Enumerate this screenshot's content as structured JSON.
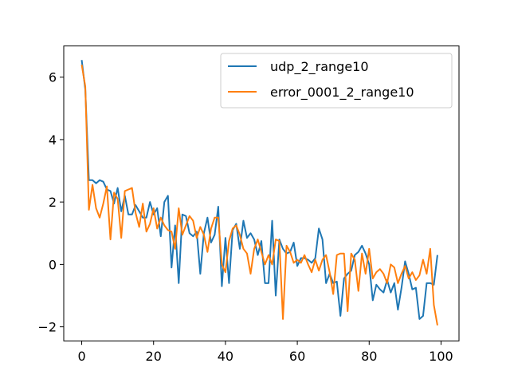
{
  "chart_data": {
    "type": "line",
    "title": "",
    "xlabel": "",
    "ylabel": "",
    "xlim": [
      -5,
      105
    ],
    "ylim": [
      -2.45,
      7.0
    ],
    "xticks": [
      0,
      20,
      40,
      60,
      80,
      100
    ],
    "yticks": [
      -2,
      0,
      2,
      4,
      6
    ],
    "xtick_labels": [
      "0",
      "20",
      "40",
      "60",
      "80",
      "100"
    ],
    "ytick_labels": [
      "−2",
      "0",
      "2",
      "4",
      "6"
    ],
    "grid": false,
    "legend_position": "top-right",
    "series": [
      {
        "name": "udp_2_range10",
        "color": "#1f77b4",
        "values": [
          6.55,
          5.6,
          2.7,
          2.7,
          2.6,
          2.7,
          2.65,
          2.4,
          2.35,
          1.95,
          2.45,
          1.7,
          2.2,
          1.6,
          1.6,
          1.9,
          1.7,
          1.5,
          1.5,
          2.0,
          1.6,
          1.8,
          0.9,
          2.0,
          2.2,
          -0.1,
          1.25,
          -0.6,
          1.6,
          1.55,
          1.0,
          0.9,
          1.05,
          -0.3,
          1.0,
          1.5,
          0.7,
          0.95,
          1.85,
          -0.7,
          0.85,
          -0.6,
          1.1,
          1.3,
          0.5,
          1.4,
          0.85,
          1.0,
          0.8,
          0.3,
          0.75,
          -0.6,
          -0.6,
          1.4,
          -1.0,
          0.8,
          0.5,
          0.35,
          0.4,
          0.7,
          -0.05,
          0.2,
          0.2,
          0.15,
          0.05,
          0.2,
          1.15,
          0.8,
          -0.6,
          -0.3,
          -0.6,
          -0.55,
          -1.65,
          -0.45,
          -0.3,
          -0.2,
          0.3,
          0.4,
          0.6,
          0.35,
          0.0,
          -1.15,
          -0.65,
          -0.8,
          -0.9,
          -0.5,
          -0.9,
          -0.6,
          -1.45,
          -0.75,
          0.1,
          -0.3,
          -0.8,
          -0.75,
          -1.75,
          -1.65,
          -0.6,
          -0.6,
          -0.65,
          0.3
        ]
      },
      {
        "name": "error_0001_2_range10",
        "color": "#ff7f0e",
        "values": [
          6.4,
          5.7,
          1.75,
          2.55,
          1.8,
          1.5,
          1.95,
          2.5,
          0.8,
          2.3,
          2.1,
          0.85,
          2.35,
          2.4,
          2.45,
          1.65,
          1.2,
          1.95,
          1.05,
          1.3,
          1.8,
          1.15,
          1.5,
          1.25,
          1.1,
          1.05,
          0.5,
          1.8,
          0.95,
          1.25,
          1.55,
          1.4,
          0.85,
          1.2,
          0.95,
          0.4,
          1.15,
          1.5,
          1.5,
          0.0,
          -0.25,
          0.75,
          1.15,
          1.25,
          0.95,
          0.5,
          0.35,
          -0.3,
          0.5,
          0.8,
          0.4,
          0.0,
          0.3,
          0.0,
          0.8,
          0.75,
          -1.75,
          0.6,
          0.4,
          0.05,
          0.15,
          0.05,
          0.3,
          0.0,
          -0.25,
          0.15,
          -0.2,
          0.15,
          0.3,
          -0.25,
          -0.95,
          0.3,
          0.35,
          0.35,
          -1.5,
          0.35,
          0.15,
          -0.85,
          0.35,
          -0.3,
          0.5,
          -0.45,
          -0.25,
          -0.15,
          -0.3,
          -0.6,
          0.0,
          -0.1,
          -0.6,
          -0.3,
          -0.05,
          -0.45,
          -0.25,
          -0.5,
          -0.35,
          0.15,
          -0.3,
          0.5,
          -1.3,
          -1.95
        ]
      }
    ]
  }
}
